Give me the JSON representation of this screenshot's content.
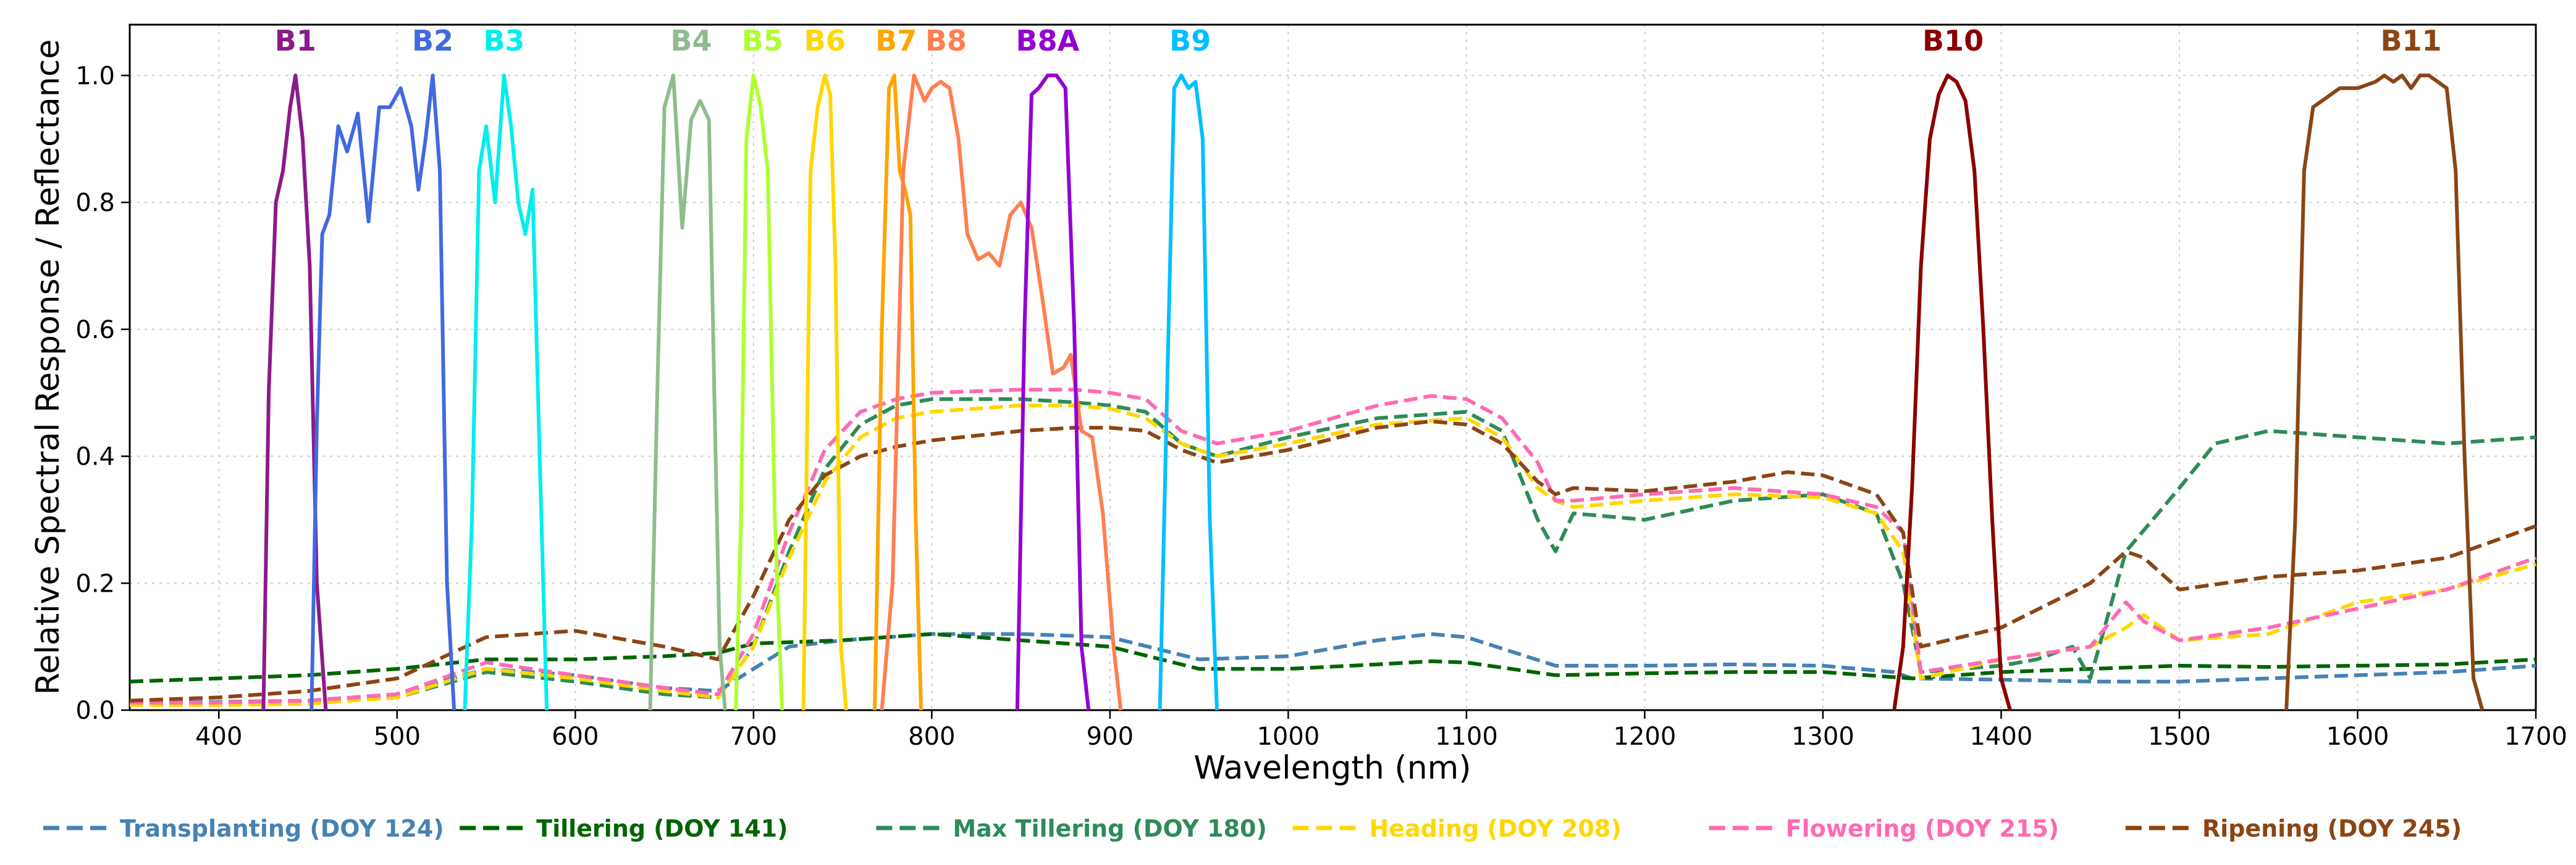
{
  "chart_data": {
    "type": "line",
    "title": "",
    "xlabel": "Wavelength (nm)",
    "ylabel": "Relative Spectral Response / Reflectance",
    "xlim": [
      350,
      1700
    ],
    "ylim": [
      0,
      1.08
    ],
    "xticks": [
      400,
      500,
      600,
      700,
      800,
      900,
      1000,
      1100,
      1200,
      1300,
      1400,
      1500,
      1600,
      1700
    ],
    "yticks": [
      0.0,
      0.2,
      0.4,
      0.6,
      0.8,
      1.0
    ],
    "xtick_labels": [
      "400",
      "500",
      "600",
      "700",
      "800",
      "900",
      "1000",
      "1100",
      "1200",
      "1300",
      "1400",
      "1500",
      "1600",
      "1700"
    ],
    "ytick_labels": [
      "0.0",
      "0.2",
      "0.4",
      "0.6",
      "0.8",
      "1.0"
    ],
    "grid": true,
    "legend_position": "bottom",
    "bands": [
      {
        "name": "B1",
        "color": "#8B1A8B",
        "label_x": 443,
        "x": [
          425,
          428,
          432,
          436,
          440,
          443,
          447,
          451,
          455,
          460
        ],
        "y": [
          0,
          0.5,
          0.8,
          0.85,
          0.95,
          1.0,
          0.9,
          0.7,
          0.2,
          0
        ]
      },
      {
        "name": "B2",
        "color": "#4169E1",
        "label_x": 520,
        "x": [
          452,
          455,
          458,
          462,
          467,
          472,
          478,
          484,
          490,
          496,
          502,
          508,
          512,
          516,
          520,
          524,
          528,
          532
        ],
        "y": [
          0,
          0.45,
          0.75,
          0.78,
          0.92,
          0.88,
          0.94,
          0.77,
          0.95,
          0.95,
          0.98,
          0.92,
          0.82,
          0.9,
          1.0,
          0.85,
          0.2,
          0
        ]
      },
      {
        "name": "B3",
        "color": "#00EEEE",
        "label_x": 560,
        "x": [
          538,
          542,
          546,
          550,
          555,
          560,
          564,
          568,
          572,
          576,
          580,
          584
        ],
        "y": [
          0,
          0.3,
          0.85,
          0.92,
          0.8,
          1.0,
          0.92,
          0.8,
          0.75,
          0.82,
          0.4,
          0
        ]
      },
      {
        "name": "B4",
        "color": "#8FBC8F",
        "label_x": 665,
        "x": [
          642,
          646,
          650,
          655,
          660,
          665,
          670,
          675,
          678,
          681,
          684
        ],
        "y": [
          0,
          0.5,
          0.95,
          1.0,
          0.76,
          0.93,
          0.96,
          0.93,
          0.5,
          0.1,
          0
        ]
      },
      {
        "name": "B5",
        "color": "#ADFF2F",
        "label_x": 705,
        "x": [
          690,
          693,
          696,
          700,
          704,
          708,
          712,
          716
        ],
        "y": [
          0,
          0.3,
          0.9,
          1.0,
          0.95,
          0.85,
          0.3,
          0
        ]
      },
      {
        "name": "B6",
        "color": "#FFD700",
        "label_x": 740,
        "x": [
          728,
          732,
          736,
          740,
          743,
          746,
          749,
          752
        ],
        "y": [
          0,
          0.85,
          0.95,
          1.0,
          0.97,
          0.7,
          0.1,
          0
        ]
      },
      {
        "name": "B7",
        "color": "#FFA500",
        "label_x": 780,
        "x": [
          768,
          772,
          776,
          779,
          782,
          785,
          788,
          791,
          794
        ],
        "y": [
          0,
          0.6,
          0.98,
          1.0,
          0.85,
          0.82,
          0.78,
          0.3,
          0
        ]
      },
      {
        "name": "B8",
        "color": "#FF7F50",
        "label_x": 808,
        "x": [
          772,
          778,
          784,
          790,
          796,
          800,
          805,
          810,
          815,
          820,
          826,
          832,
          838,
          844,
          850,
          856,
          862,
          868,
          874,
          878,
          884,
          890,
          896,
          902,
          906
        ],
        "y": [
          0,
          0.2,
          0.85,
          1.0,
          0.96,
          0.98,
          0.99,
          0.98,
          0.9,
          0.75,
          0.71,
          0.72,
          0.7,
          0.78,
          0.8,
          0.76,
          0.65,
          0.53,
          0.54,
          0.56,
          0.44,
          0.43,
          0.31,
          0.1,
          0
        ]
      },
      {
        "name": "B8A",
        "color": "#9400D3",
        "label_x": 865,
        "x": [
          848,
          852,
          856,
          860,
          865,
          870,
          875,
          880,
          884,
          888
        ],
        "y": [
          0,
          0.6,
          0.97,
          0.98,
          1.0,
          1.0,
          0.98,
          0.6,
          0.1,
          0
        ]
      },
      {
        "name": "B9",
        "color": "#00BFFF",
        "label_x": 945,
        "x": [
          928,
          932,
          936,
          940,
          944,
          948,
          952,
          956,
          960
        ],
        "y": [
          0,
          0.5,
          0.98,
          1.0,
          0.98,
          0.99,
          0.9,
          0.3,
          0
        ]
      },
      {
        "name": "B10",
        "color": "#8B0000",
        "label_x": 1373,
        "x": [
          1340,
          1345,
          1350,
          1355,
          1360,
          1365,
          1370,
          1375,
          1380,
          1385,
          1390,
          1395,
          1400,
          1405
        ],
        "y": [
          0,
          0.1,
          0.35,
          0.7,
          0.9,
          0.97,
          1.0,
          0.99,
          0.96,
          0.85,
          0.6,
          0.3,
          0.05,
          0
        ]
      },
      {
        "name": "B11",
        "color": "#8B4513",
        "label_x": 1630,
        "x": [
          1560,
          1565,
          1570,
          1575,
          1580,
          1590,
          1600,
          1610,
          1615,
          1620,
          1625,
          1630,
          1635,
          1640,
          1645,
          1650,
          1655,
          1660,
          1665,
          1670
        ],
        "y": [
          0,
          0.3,
          0.85,
          0.95,
          0.96,
          0.98,
          0.98,
          0.99,
          1.0,
          0.99,
          1.0,
          0.98,
          1.0,
          1.0,
          0.99,
          0.98,
          0.85,
          0.4,
          0.05,
          0
        ]
      }
    ],
    "series": [
      {
        "name": "Transplanting (DOY 124)",
        "color": "#4682B4",
        "x": [
          350,
          400,
          450,
          500,
          550,
          600,
          650,
          680,
          700,
          720,
          750,
          800,
          850,
          900,
          950,
          1000,
          1050,
          1080,
          1100,
          1150,
          1200,
          1250,
          1300,
          1340,
          1350,
          1400,
          1450,
          1500,
          1550,
          1600,
          1650,
          1700
        ],
        "y": [
          0.012,
          0.013,
          0.015,
          0.025,
          0.065,
          0.055,
          0.035,
          0.03,
          0.065,
          0.1,
          0.11,
          0.12,
          0.12,
          0.115,
          0.08,
          0.085,
          0.11,
          0.12,
          0.115,
          0.07,
          0.07,
          0.072,
          0.07,
          0.06,
          0.05,
          0.048,
          0.045,
          0.045,
          0.05,
          0.055,
          0.06,
          0.07
        ]
      },
      {
        "name": "Tillering (DOY 141)",
        "color": "#006400",
        "x": [
          350,
          400,
          450,
          500,
          550,
          600,
          650,
          680,
          700,
          750,
          800,
          850,
          900,
          950,
          1000,
          1050,
          1080,
          1100,
          1150,
          1200,
          1250,
          1300,
          1350,
          1400,
          1450,
          1500,
          1550,
          1600,
          1650,
          1700
        ],
        "y": [
          0.045,
          0.05,
          0.055,
          0.065,
          0.08,
          0.08,
          0.085,
          0.09,
          0.105,
          0.11,
          0.12,
          0.11,
          0.1,
          0.065,
          0.065,
          0.072,
          0.077,
          0.075,
          0.055,
          0.058,
          0.06,
          0.06,
          0.05,
          0.06,
          0.065,
          0.07,
          0.068,
          0.07,
          0.072,
          0.08
        ]
      },
      {
        "name": "Max Tillering (DOY 180)",
        "color": "#2E8B57",
        "x": [
          350,
          400,
          450,
          500,
          550,
          600,
          650,
          680,
          700,
          720,
          740,
          760,
          780,
          800,
          850,
          880,
          900,
          920,
          940,
          960,
          1000,
          1050,
          1100,
          1120,
          1140,
          1150,
          1160,
          1200,
          1250,
          1300,
          1330,
          1345,
          1355,
          1400,
          1420,
          1440,
          1450,
          1470,
          1500,
          1520,
          1550,
          1600,
          1650,
          1700
        ],
        "y": [
          0.01,
          0.01,
          0.012,
          0.02,
          0.06,
          0.045,
          0.025,
          0.02,
          0.1,
          0.25,
          0.38,
          0.45,
          0.48,
          0.49,
          0.49,
          0.485,
          0.48,
          0.47,
          0.42,
          0.4,
          0.43,
          0.46,
          0.47,
          0.44,
          0.3,
          0.25,
          0.31,
          0.3,
          0.33,
          0.34,
          0.31,
          0.2,
          0.06,
          0.07,
          0.08,
          0.1,
          0.05,
          0.25,
          0.35,
          0.42,
          0.44,
          0.43,
          0.42,
          0.43
        ]
      },
      {
        "name": "Heading (DOY 208)",
        "color": "#FFD700",
        "x": [
          350,
          400,
          450,
          500,
          550,
          600,
          650,
          680,
          700,
          720,
          740,
          760,
          780,
          800,
          850,
          880,
          900,
          920,
          940,
          960,
          1000,
          1050,
          1100,
          1120,
          1140,
          1150,
          1160,
          1200,
          1250,
          1300,
          1330,
          1345,
          1355,
          1400,
          1450,
          1470,
          1480,
          1500,
          1550,
          1600,
          1650,
          1700
        ],
        "y": [
          0.008,
          0.008,
          0.01,
          0.02,
          0.065,
          0.05,
          0.03,
          0.02,
          0.1,
          0.24,
          0.36,
          0.43,
          0.46,
          0.47,
          0.48,
          0.48,
          0.475,
          0.46,
          0.42,
          0.4,
          0.42,
          0.45,
          0.46,
          0.43,
          0.35,
          0.33,
          0.32,
          0.33,
          0.34,
          0.335,
          0.31,
          0.25,
          0.05,
          0.08,
          0.1,
          0.13,
          0.15,
          0.11,
          0.12,
          0.17,
          0.19,
          0.23
        ]
      },
      {
        "name": "Flowering (DOY 215)",
        "color": "#FF69B4",
        "x": [
          350,
          400,
          450,
          500,
          550,
          600,
          650,
          680,
          700,
          720,
          740,
          760,
          780,
          800,
          850,
          880,
          900,
          920,
          940,
          960,
          1000,
          1050,
          1080,
          1100,
          1120,
          1140,
          1150,
          1160,
          1200,
          1250,
          1300,
          1330,
          1345,
          1355,
          1400,
          1450,
          1470,
          1480,
          1500,
          1550,
          1600,
          1650,
          1700
        ],
        "y": [
          0.012,
          0.012,
          0.015,
          0.025,
          0.075,
          0.055,
          0.035,
          0.025,
          0.12,
          0.28,
          0.41,
          0.47,
          0.49,
          0.5,
          0.505,
          0.505,
          0.5,
          0.49,
          0.44,
          0.42,
          0.44,
          0.48,
          0.495,
          0.49,
          0.46,
          0.39,
          0.33,
          0.33,
          0.34,
          0.35,
          0.34,
          0.32,
          0.28,
          0.06,
          0.08,
          0.1,
          0.17,
          0.14,
          0.11,
          0.13,
          0.16,
          0.19,
          0.24
        ]
      },
      {
        "name": "Ripening (DOY 245)",
        "color": "#8B4513",
        "x": [
          350,
          400,
          450,
          500,
          550,
          600,
          650,
          680,
          700,
          720,
          740,
          760,
          780,
          800,
          850,
          880,
          900,
          920,
          940,
          960,
          1000,
          1050,
          1080,
          1100,
          1120,
          1140,
          1150,
          1160,
          1200,
          1250,
          1280,
          1300,
          1330,
          1345,
          1355,
          1400,
          1450,
          1470,
          1480,
          1500,
          1550,
          1600,
          1650,
          1700
        ],
        "y": [
          0.015,
          0.02,
          0.03,
          0.05,
          0.115,
          0.125,
          0.1,
          0.08,
          0.18,
          0.3,
          0.37,
          0.4,
          0.415,
          0.425,
          0.44,
          0.445,
          0.445,
          0.44,
          0.41,
          0.39,
          0.41,
          0.445,
          0.455,
          0.45,
          0.42,
          0.36,
          0.34,
          0.35,
          0.345,
          0.36,
          0.375,
          0.37,
          0.34,
          0.28,
          0.1,
          0.13,
          0.2,
          0.25,
          0.24,
          0.19,
          0.21,
          0.22,
          0.24,
          0.29
        ]
      }
    ]
  }
}
